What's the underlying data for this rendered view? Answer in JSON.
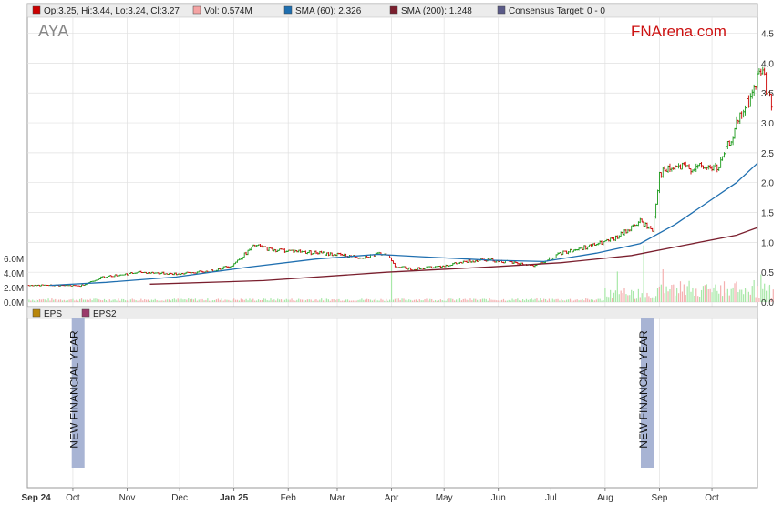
{
  "ticker": "AYA",
  "brand": "FNArena.com",
  "legend_top": [
    {
      "label": "Op:3.25, Hi:3.44, Lo:3.24, Cl:3.27",
      "color": "#cc0000"
    },
    {
      "label": "Vol: 0.574M",
      "color": "#f4a3a3"
    },
    {
      "label": "SMA (60): 2.326",
      "color": "#1f6fb0"
    },
    {
      "label": "SMA (200): 1.248",
      "color": "#7a1f2e"
    },
    {
      "label": "Consensus Target: 0 - 0",
      "color": "#5a5a88"
    }
  ],
  "legend_bottom": [
    {
      "label": "EPS",
      "color": "#b8860b"
    },
    {
      "label": "EPS2",
      "color": "#9a3a6a"
    }
  ],
  "annotations": [
    {
      "label": "NEW FINANCIAL YEAR",
      "day": 24
    },
    {
      "label": "NEW FINANCIAL YEAR",
      "day": 349
    }
  ],
  "colors": {
    "up": "#1a9a1a",
    "down": "#cc0000",
    "sma60": "#1f6fb0",
    "sma200": "#7a1f2e",
    "vol_up": "#a8e8a8",
    "vol_down": "#f4b0b0",
    "band": "#a8b4d4",
    "grid": "#e0e0e0"
  },
  "chart_data": {
    "type": "line",
    "title": "AYA",
    "y_ticks": [
      "0.0",
      "0.5",
      "1.0",
      "1.5",
      "2.0",
      "2.5",
      "3.0",
      "3.5",
      "4.0",
      "4.5"
    ],
    "y_range": [
      0,
      4.6
    ],
    "vol_ticks": [
      "0.0M",
      "2.0M",
      "4.0M",
      "6.0M"
    ],
    "vol_range": [
      0,
      8.5
    ],
    "x_labels": [
      {
        "label": "Sep 24",
        "day": 0,
        "bold": true
      },
      {
        "label": "Oct",
        "day": 21,
        "bold": false
      },
      {
        "label": "Nov",
        "day": 52,
        "bold": false
      },
      {
        "label": "Dec",
        "day": 82,
        "bold": false
      },
      {
        "label": "Jan 25",
        "day": 113,
        "bold": true
      },
      {
        "label": "Feb",
        "day": 144,
        "bold": false
      },
      {
        "label": "Mar",
        "day": 172,
        "bold": false
      },
      {
        "label": "Apr",
        "day": 203,
        "bold": false
      },
      {
        "label": "May",
        "day": 233,
        "bold": false
      },
      {
        "label": "Jun",
        "day": 264,
        "bold": false
      },
      {
        "label": "Jul",
        "day": 294,
        "bold": false
      },
      {
        "label": "Aug",
        "day": 325,
        "bold": false
      },
      {
        "label": "Sep",
        "day": 356,
        "bold": false
      },
      {
        "label": "Oct",
        "day": 386,
        "bold": false
      }
    ],
    "x_range": [
      -5,
      412
    ],
    "price": [
      [
        -5,
        0.28
      ],
      [
        10,
        0.28
      ],
      [
        25,
        0.27
      ],
      [
        38,
        0.42
      ],
      [
        60,
        0.5
      ],
      [
        80,
        0.47
      ],
      [
        100,
        0.52
      ],
      [
        112,
        0.62
      ],
      [
        125,
        0.95
      ],
      [
        134,
        0.88
      ],
      [
        150,
        0.85
      ],
      [
        170,
        0.8
      ],
      [
        185,
        0.75
      ],
      [
        200,
        0.82
      ],
      [
        205,
        0.6
      ],
      [
        215,
        0.55
      ],
      [
        235,
        0.62
      ],
      [
        255,
        0.72
      ],
      [
        275,
        0.65
      ],
      [
        285,
        0.6
      ],
      [
        300,
        0.82
      ],
      [
        318,
        0.95
      ],
      [
        330,
        1.05
      ],
      [
        345,
        1.35
      ],
      [
        352,
        1.2
      ],
      [
        356,
        2.15
      ],
      [
        365,
        2.25
      ],
      [
        375,
        2.25
      ],
      [
        390,
        2.25
      ],
      [
        400,
        2.95
      ],
      [
        410,
        3.55
      ],
      [
        414,
        3.95
      ],
      [
        418,
        3.5
      ],
      [
        420,
        3.27
      ]
    ],
    "sma60": [
      [
        8,
        0.28
      ],
      [
        40,
        0.33
      ],
      [
        80,
        0.42
      ],
      [
        120,
        0.58
      ],
      [
        160,
        0.72
      ],
      [
        195,
        0.8
      ],
      [
        220,
        0.76
      ],
      [
        260,
        0.7
      ],
      [
        290,
        0.68
      ],
      [
        320,
        0.82
      ],
      [
        345,
        0.98
      ],
      [
        365,
        1.3
      ],
      [
        385,
        1.7
      ],
      [
        400,
        2.0
      ],
      [
        412,
        2.326
      ]
    ],
    "sma200": [
      [
        65,
        0.3
      ],
      [
        130,
        0.36
      ],
      [
        200,
        0.5
      ],
      [
        260,
        0.59
      ],
      [
        300,
        0.66
      ],
      [
        340,
        0.78
      ],
      [
        370,
        0.95
      ],
      [
        400,
        1.12
      ],
      [
        412,
        1.248
      ]
    ],
    "volume_spikes": [
      [
        203,
        5.5
      ],
      [
        332,
        4.2
      ],
      [
        347,
        7.8
      ],
      [
        358,
        4.5
      ],
      [
        410,
        3.0
      ],
      [
        414,
        3.8
      ]
    ]
  }
}
